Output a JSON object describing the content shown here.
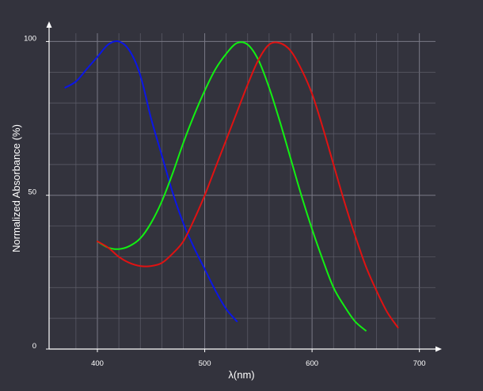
{
  "chart_data": {
    "type": "line",
    "xlabel": "λ(nm)",
    "ylabel": "Normalized Absorbance (%)",
    "xlim": [
      355,
      715
    ],
    "ylim": [
      0,
      105
    ],
    "x_ticks": [
      400,
      500,
      600,
      700
    ],
    "y_ticks": [
      0,
      50,
      100
    ],
    "x_minor_step": 20,
    "y_minor_step": 10,
    "grid": true,
    "legend": "none",
    "colors": {
      "background": "#33333d",
      "grid": "#5e5e6a",
      "axis": "#ffffff",
      "text": "#ffffff"
    },
    "series": [
      {
        "color": "#0b16e6",
        "x": [
          370,
          380,
          390,
          400,
          410,
          420,
          430,
          440,
          450,
          460,
          470,
          480,
          490,
          500,
          510,
          520,
          530
        ],
        "y": [
          85,
          87,
          91,
          95,
          99,
          100,
          97,
          89,
          75,
          63,
          51,
          41,
          33,
          26,
          19,
          13,
          9
        ]
      },
      {
        "color": "#12f012",
        "x": [
          400,
          410,
          420,
          430,
          440,
          450,
          460,
          470,
          480,
          490,
          500,
          510,
          520,
          530,
          540,
          550,
          560,
          570,
          580,
          590,
          600,
          610,
          620,
          630,
          640,
          650
        ],
        "y": [
          35,
          33,
          32.5,
          33.5,
          36,
          41,
          48,
          57,
          67,
          76,
          84,
          91,
          96,
          99.5,
          99,
          94,
          85,
          74,
          62,
          50,
          39,
          29,
          20,
          14,
          9,
          6
        ]
      },
      {
        "color": "#e01212",
        "x": [
          400,
          410,
          420,
          430,
          440,
          450,
          460,
          470,
          480,
          490,
          500,
          510,
          520,
          530,
          540,
          550,
          560,
          570,
          580,
          590,
          600,
          610,
          620,
          630,
          640,
          650,
          660,
          670,
          680
        ],
        "y": [
          35,
          33,
          30,
          28,
          27,
          27,
          28,
          31,
          35,
          42,
          50,
          59,
          68,
          77,
          86,
          94,
          99,
          99.5,
          97,
          91,
          83,
          72,
          60,
          48,
          37,
          27,
          19,
          12,
          7
        ]
      }
    ]
  }
}
